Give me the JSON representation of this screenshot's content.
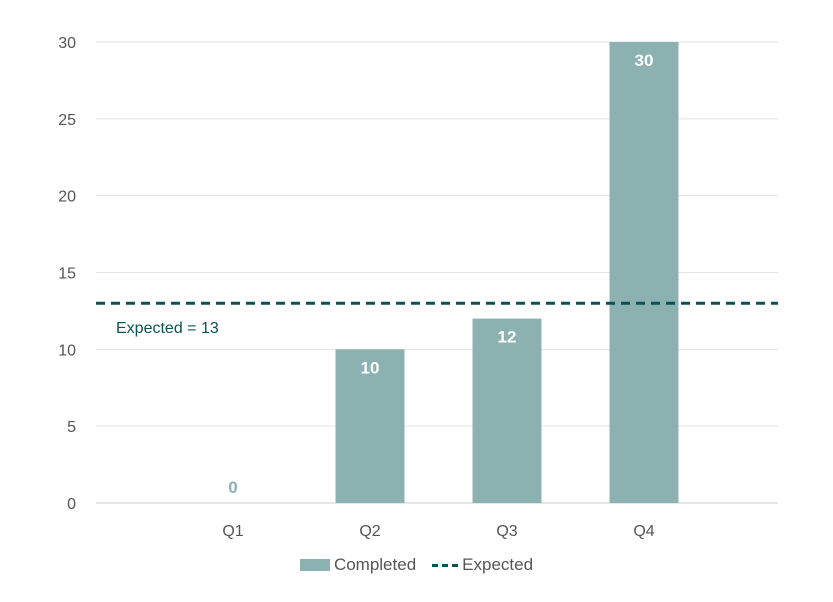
{
  "chart_data": {
    "type": "bar",
    "categories": [
      "Q1",
      "Q2",
      "Q3",
      "Q4"
    ],
    "series": [
      {
        "name": "Completed",
        "values": [
          0,
          10,
          12,
          30
        ],
        "color": "#8cb1b1"
      }
    ],
    "reference_line": {
      "name": "Expected",
      "value": 13,
      "label": "Expected = 13",
      "color": "#0b5352",
      "style": "dashed"
    },
    "y_ticks": [
      0,
      5,
      10,
      15,
      20,
      25,
      30
    ],
    "ylim": [
      0,
      30
    ],
    "grid": true,
    "legend_position": "bottom",
    "data_labels": true
  },
  "legend": {
    "completed_label": "Completed",
    "expected_label": "Expected"
  }
}
